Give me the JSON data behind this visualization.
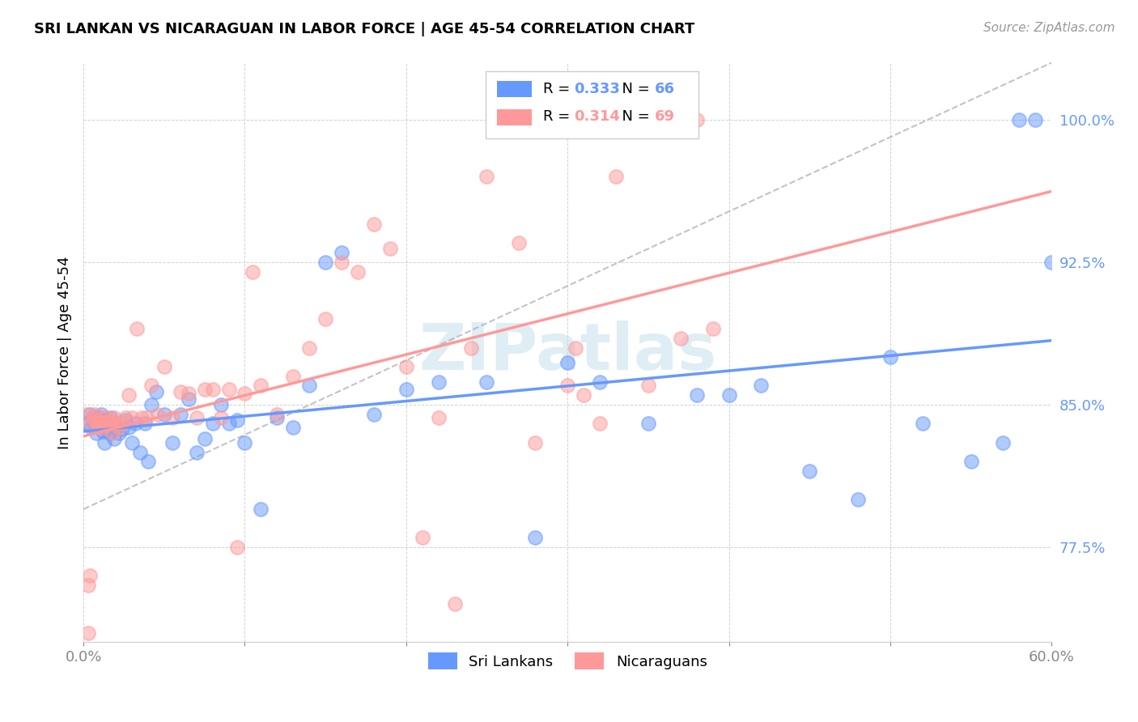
{
  "title": "SRI LANKAN VS NICARAGUAN IN LABOR FORCE | AGE 45-54 CORRELATION CHART",
  "source": "Source: ZipAtlas.com",
  "ylabel": "In Labor Force | Age 45-54",
  "xlim": [
    0.0,
    0.6
  ],
  "ylim": [
    0.725,
    1.03
  ],
  "yticks": [
    0.775,
    0.85,
    0.925,
    1.0
  ],
  "ytick_labels": [
    "77.5%",
    "85.0%",
    "92.5%",
    "100.0%"
  ],
  "xticks": [
    0.0,
    0.1,
    0.2,
    0.3,
    0.4,
    0.5,
    0.6
  ],
  "sri_lankans_color": "#6699ff",
  "nicaraguans_color": "#ff9999",
  "sri_lankans_r": 0.333,
  "sri_lankans_n": 66,
  "nicaraguans_r": 0.314,
  "nicaraguans_n": 69,
  "watermark": "ZIPatlas",
  "sri_lankans_x": [
    0.002,
    0.004,
    0.005,
    0.006,
    0.007,
    0.008,
    0.009,
    0.01,
    0.011,
    0.012,
    0.013,
    0.014,
    0.015,
    0.016,
    0.017,
    0.018,
    0.019,
    0.02,
    0.022,
    0.024,
    0.026,
    0.028,
    0.03,
    0.032,
    0.035,
    0.038,
    0.04,
    0.042,
    0.045,
    0.05,
    0.055,
    0.06,
    0.065,
    0.07,
    0.075,
    0.08,
    0.085,
    0.09,
    0.095,
    0.1,
    0.11,
    0.12,
    0.13,
    0.14,
    0.15,
    0.16,
    0.18,
    0.2,
    0.22,
    0.25,
    0.28,
    0.3,
    0.32,
    0.35,
    0.38,
    0.4,
    0.42,
    0.45,
    0.48,
    0.5,
    0.52,
    0.55,
    0.57,
    0.58,
    0.59,
    0.6
  ],
  "sri_lankans_y": [
    0.84,
    0.845,
    0.838,
    0.843,
    0.84,
    0.835,
    0.84,
    0.843,
    0.845,
    0.836,
    0.83,
    0.842,
    0.838,
    0.835,
    0.843,
    0.84,
    0.832,
    0.838,
    0.835,
    0.837,
    0.842,
    0.838,
    0.83,
    0.84,
    0.825,
    0.84,
    0.82,
    0.85,
    0.857,
    0.845,
    0.83,
    0.845,
    0.853,
    0.825,
    0.832,
    0.84,
    0.85,
    0.84,
    0.842,
    0.83,
    0.795,
    0.843,
    0.838,
    0.86,
    0.925,
    0.93,
    0.845,
    0.858,
    0.862,
    0.862,
    0.78,
    0.872,
    0.862,
    0.84,
    0.855,
    0.855,
    0.86,
    0.815,
    0.8,
    0.875,
    0.84,
    0.82,
    0.83,
    1.0,
    1.0,
    0.925
  ],
  "nicaraguans_x": [
    0.002,
    0.003,
    0.005,
    0.006,
    0.007,
    0.008,
    0.009,
    0.01,
    0.011,
    0.012,
    0.013,
    0.014,
    0.015,
    0.016,
    0.017,
    0.018,
    0.019,
    0.02,
    0.022,
    0.024,
    0.026,
    0.028,
    0.03,
    0.033,
    0.036,
    0.039,
    0.042,
    0.046,
    0.05,
    0.055,
    0.06,
    0.065,
    0.07,
    0.075,
    0.08,
    0.085,
    0.09,
    0.095,
    0.1,
    0.105,
    0.11,
    0.12,
    0.13,
    0.14,
    0.15,
    0.16,
    0.17,
    0.18,
    0.19,
    0.2,
    0.21,
    0.22,
    0.23,
    0.24,
    0.25,
    0.27,
    0.29,
    0.31,
    0.33,
    0.35,
    0.37,
    0.38,
    0.39,
    0.28,
    0.3,
    0.305,
    0.32,
    0.003,
    0.004
  ],
  "nicaraguans_y": [
    0.845,
    0.755,
    0.84,
    0.843,
    0.845,
    0.84,
    0.838,
    0.84,
    0.843,
    0.838,
    0.84,
    0.843,
    0.84,
    0.84,
    0.842,
    0.835,
    0.843,
    0.84,
    0.838,
    0.84,
    0.843,
    0.855,
    0.843,
    0.89,
    0.843,
    0.843,
    0.86,
    0.845,
    0.87,
    0.843,
    0.857,
    0.856,
    0.843,
    0.858,
    0.858,
    0.843,
    0.858,
    0.775,
    0.856,
    0.92,
    0.86,
    0.845,
    0.865,
    0.88,
    0.895,
    0.925,
    0.92,
    0.945,
    0.932,
    0.87,
    0.78,
    0.843,
    0.745,
    0.88,
    0.97,
    0.935,
    1.0,
    0.855,
    0.97,
    0.86,
    0.885,
    1.0,
    0.89,
    0.83,
    0.86,
    0.88,
    0.84,
    0.73,
    0.76
  ]
}
